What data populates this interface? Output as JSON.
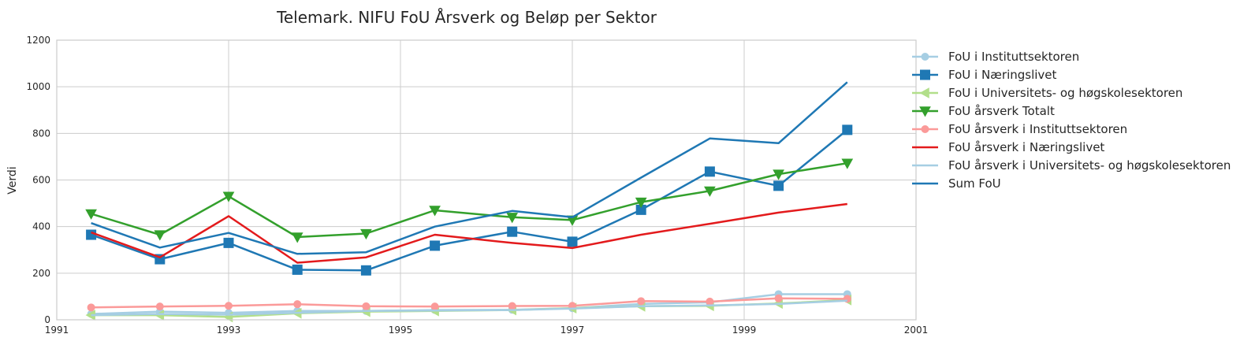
{
  "chart_data": {
    "type": "line",
    "title": "Telemark. NIFU FoU Årsverk og Beløp per Sektor",
    "xlabel": "",
    "ylabel": "Verdi",
    "xlim": [
      1991,
      2001
    ],
    "ylim": [
      0,
      1200
    ],
    "xticks": [
      "1991",
      "1993",
      "1995",
      "1997",
      "1999",
      "2001"
    ],
    "yticks": [
      "0",
      "200",
      "400",
      "600",
      "800",
      "1000",
      "1200"
    ],
    "grid": true,
    "legend_position": "outside-right",
    "x": [
      1991.4,
      1992.2,
      1993.0,
      1993.8,
      1994.6,
      1995.4,
      1996.3,
      1997.0,
      1997.8,
      1998.6,
      1999.4,
      2000.2
    ],
    "series": [
      {
        "name": "FoU i Instituttsektoren",
        "color": "#a6cee3",
        "marker": "circle",
        "values": [
          25,
          35,
          30,
          38,
          38,
          42,
          43,
          50,
          68,
          75,
          110,
          110
        ]
      },
      {
        "name": "FoU i Næringslivet",
        "color": "#1f78b4",
        "marker": "square",
        "values": [
          365,
          260,
          330,
          215,
          212,
          318,
          378,
          335,
          472,
          636,
          575,
          815
        ]
      },
      {
        "name": "FoU i Universitets- og høgskolesektoren",
        "color": "#b2df8a",
        "marker": "triangle-left",
        "values": [
          20,
          20,
          12,
          28,
          35,
          38,
          42,
          50,
          58,
          60,
          70,
          85
        ]
      },
      {
        "name": "FoU årsverk Totalt",
        "color": "#33a02c",
        "marker": "triangle-down",
        "values": [
          455,
          365,
          530,
          355,
          370,
          470,
          440,
          428,
          505,
          553,
          625,
          672
        ]
      },
      {
        "name": "FoU årsverk i Instituttsektoren",
        "color": "#fb9a99",
        "marker": "circle",
        "values": [
          53,
          57,
          60,
          67,
          58,
          57,
          59,
          60,
          80,
          78,
          92,
          90
        ]
      },
      {
        "name": "FoU årsverk i Næringslivet",
        "color": "#e31a1c",
        "marker": "none",
        "values": [
          375,
          268,
          445,
          245,
          268,
          365,
          330,
          308,
          365,
          412,
          460,
          497
        ]
      },
      {
        "name": "FoU årsverk i Universitets- og høgskolesektoren",
        "color": "#a6cee3",
        "marker": "none",
        "values": [
          20,
          25,
          22,
          30,
          38,
          40,
          42,
          48,
          58,
          62,
          68,
          82
        ]
      },
      {
        "name": "Sum FoU",
        "color": "#1f78b4",
        "marker": "none",
        "values": [
          415,
          310,
          373,
          283,
          290,
          400,
          467,
          440,
          610,
          778,
          758,
          1020
        ]
      }
    ]
  }
}
